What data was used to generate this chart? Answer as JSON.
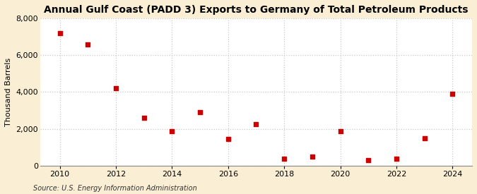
{
  "title": "Annual Gulf Coast (PADD 3) Exports to Germany of Total Petroleum Products",
  "ylabel": "Thousand Barrels",
  "source": "Source: U.S. Energy Information Administration",
  "years": [
    2010,
    2011,
    2012,
    2013,
    2014,
    2015,
    2016,
    2017,
    2018,
    2019,
    2020,
    2021,
    2022,
    2023,
    2024
  ],
  "values": [
    7200,
    6600,
    4200,
    2600,
    1850,
    2900,
    1450,
    2250,
    350,
    500,
    1850,
    300,
    350,
    1500,
    3900
  ],
  "marker_color": "#cc0000",
  "marker_size": 5,
  "fig_background_color": "#faefd4",
  "axes_background_color": "#ffffff",
  "grid_color": "#c8c8c8",
  "ylim": [
    0,
    8000
  ],
  "xlim": [
    2009.3,
    2024.7
  ],
  "yticks": [
    0,
    2000,
    4000,
    6000,
    8000
  ],
  "xticks": [
    2010,
    2012,
    2014,
    2016,
    2018,
    2020,
    2022,
    2024
  ],
  "title_fontsize": 10,
  "label_fontsize": 8,
  "tick_fontsize": 8,
  "source_fontsize": 7
}
